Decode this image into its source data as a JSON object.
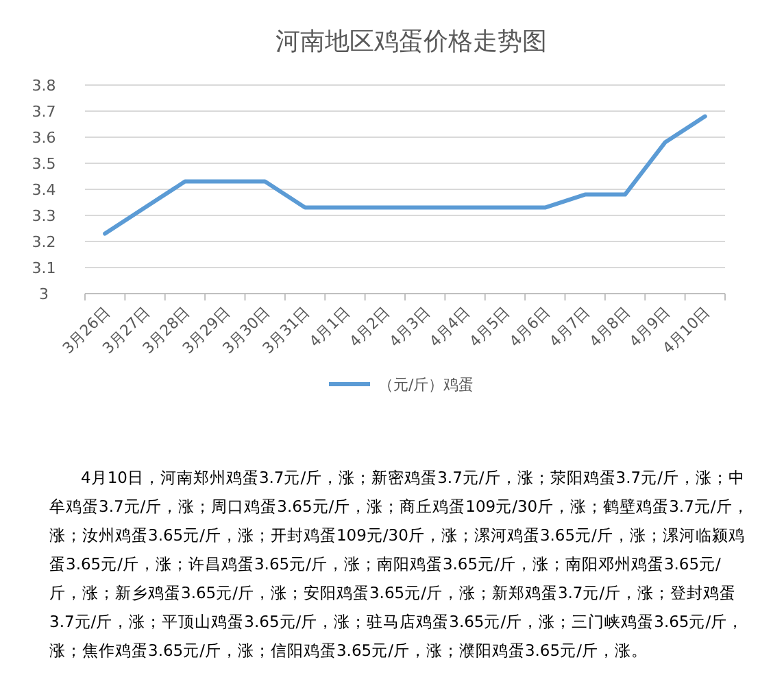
{
  "chart_data": {
    "type": "line",
    "title": "河南地区鸡蛋价格走势图",
    "categories": [
      "3月26日",
      "3月27日",
      "3月28日",
      "3月29日",
      "3月30日",
      "3月31日",
      "4月1日",
      "4月2日",
      "4月3日",
      "4月4日",
      "4月5日",
      "4月6日",
      "4月7日",
      "4月8日",
      "4月9日",
      "4月10日"
    ],
    "series": [
      {
        "name": "（元/斤）鸡蛋",
        "color": "#5b9bd5",
        "values": [
          3.23,
          3.33,
          3.43,
          3.43,
          3.43,
          3.33,
          3.33,
          3.33,
          3.33,
          3.33,
          3.33,
          3.33,
          3.38,
          3.38,
          3.58,
          3.68
        ]
      }
    ],
    "ylim": [
      3,
      3.8
    ],
    "yticks": [
      3,
      3.1,
      3.2,
      3.3,
      3.4,
      3.5,
      3.6,
      3.7,
      3.8
    ],
    "grid": "y",
    "legend": "bottom",
    "marker": "none",
    "line_style": "solid",
    "annotations": [
      "4月10日，河南郑州鸡蛋3.7元/斤，涨；新密鸡蛋3.7元/斤，涨；荥阳鸡蛋3.7元/斤，涨；中牟鸡蛋3.7元/斤，涨；周口鸡蛋3.65元/斤，涨；商丘鸡蛋109元/30斤，涨；鹤壁鸡蛋3.7元/斤，涨；汝州鸡蛋3.65元/斤，涨；开封鸡蛋109元/30斤，涨；漯河鸡蛋3.65元/斤，涨；漯河临颍鸡蛋3.65元/斤，涨；许昌鸡蛋3.65元/斤，涨；南阳鸡蛋3.65元/斤，涨；南阳邓州鸡蛋3.65元/斤，涨；新乡鸡蛋3.65元/斤，涨；安阳鸡蛋3.65元/斤，涨；新郑鸡蛋3.7元/斤，涨；登封鸡蛋3.7元/斤，涨；平顶山鸡蛋3.65元/斤，涨；驻马店鸡蛋3.65元/斤，涨；三门峡鸡蛋3.65元/斤，涨；焦作鸡蛋3.65元/斤，涨；信阳鸡蛋3.65元/斤，涨；濮阳鸡蛋3.65元/斤，涨。"
    ]
  }
}
